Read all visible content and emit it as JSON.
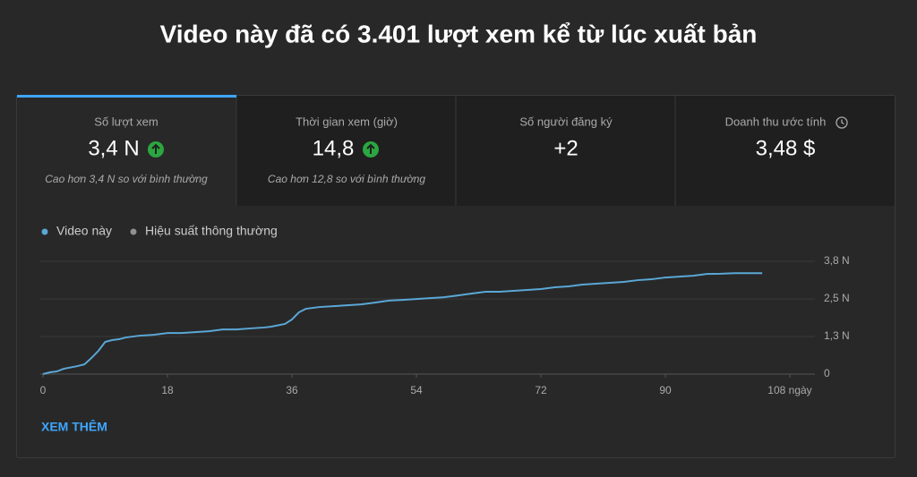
{
  "header": {
    "title": "Video này đã có 3.401 lượt xem kể từ lúc xuất bản"
  },
  "metrics": [
    {
      "label": "Số lượt xem",
      "value": "3,4 N",
      "note": "Cao hơn 3,4 N so với bình thường"
    },
    {
      "label": "Thời gian xem (giờ)",
      "value": "14,8",
      "note": "Cao hơn 12,8 so với bình thường"
    },
    {
      "label": "Số người đăng ký",
      "value": "+2"
    },
    {
      "label": "Doanh thu ước tính",
      "value": "3,48 $"
    }
  ],
  "chart_data": {
    "type": "line",
    "x": [
      0,
      1,
      2,
      3,
      5,
      6,
      7,
      8,
      9,
      10,
      11,
      12,
      14,
      16,
      18,
      20,
      22,
      24,
      26,
      28,
      30,
      32,
      33,
      35,
      36,
      37,
      38,
      39,
      40,
      42,
      44,
      46,
      48,
      50,
      52,
      54,
      56,
      58,
      60,
      62,
      64,
      66,
      68,
      70,
      72,
      74,
      76,
      78,
      80,
      82,
      84,
      86,
      88,
      90,
      92,
      94,
      96,
      98,
      100,
      102,
      104
    ],
    "series": [
      {
        "name": "Video này",
        "color": "#5aa7d6",
        "values": [
          0,
          60,
          90,
          180,
          270,
          330,
          540,
          780,
          1085,
          1145,
          1175,
          1235,
          1295,
          1325,
          1385,
          1385,
          1415,
          1445,
          1505,
          1505,
          1540,
          1570,
          1600,
          1690,
          1840,
          2080,
          2200,
          2230,
          2260,
          2290,
          2320,
          2350,
          2410,
          2475,
          2500,
          2530,
          2560,
          2590,
          2650,
          2715,
          2775,
          2775,
          2805,
          2835,
          2865,
          2925,
          2955,
          3015,
          3045,
          3075,
          3105,
          3165,
          3195,
          3255,
          3285,
          3315,
          3375,
          3380,
          3401,
          3401,
          3401
        ]
      },
      {
        "name": "Hiệu suất thông thường",
        "color": "#909090",
        "values": [
          null,
          null,
          null,
          null,
          null,
          null,
          null,
          null,
          null,
          null,
          null,
          null,
          null,
          null,
          null,
          null,
          null,
          null,
          null,
          null,
          null,
          null,
          null,
          null,
          null,
          null,
          null,
          null,
          null,
          null,
          null,
          null,
          null,
          null,
          null,
          null,
          null,
          null,
          null,
          null,
          null,
          null,
          null,
          null,
          null,
          null,
          null,
          null,
          null,
          null,
          null,
          null,
          null,
          null,
          null,
          null,
          null,
          null,
          null,
          null,
          null
        ]
      }
    ],
    "xlim": [
      0,
      112
    ],
    "xticks": [
      0,
      18,
      36,
      54,
      72,
      90,
      {
        "value": 108,
        "label": "108 ngày"
      }
    ],
    "ylim": [
      0,
      3800
    ],
    "yticks": [
      0,
      {
        "value": 1267,
        "label": "1,3 N"
      },
      {
        "value": 2533,
        "label": "2,5 N"
      },
      {
        "value": 3800,
        "label": "3,8 N"
      }
    ],
    "grid": true
  },
  "footer": {
    "link": "XEM THÊM"
  }
}
